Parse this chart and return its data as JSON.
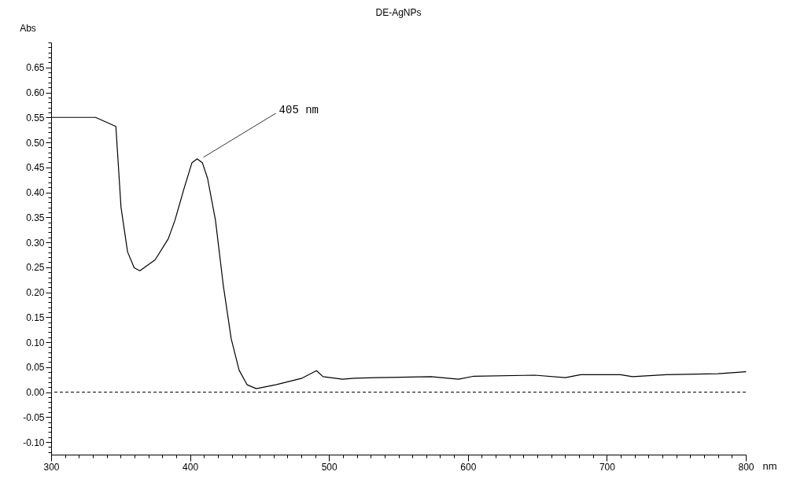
{
  "chart_data": {
    "type": "line",
    "title": "DE-AgNPs",
    "xlabel": "nm",
    "ylabel": "Abs",
    "xlim": [
      300,
      800
    ],
    "ylim": [
      -0.125,
      0.7
    ],
    "xticks": [
      300,
      {
        "value": 310,
        "label": null
      },
      {
        "value": 320,
        "label": null
      },
      {
        "value": 330,
        "label": null
      },
      {
        "value": 340,
        "label": null
      },
      {
        "value": 350,
        "label": null
      },
      {
        "value": 360,
        "label": null
      },
      {
        "value": 370,
        "label": null
      },
      {
        "value": 380,
        "label": null
      },
      {
        "value": 390,
        "label": null
      },
      400,
      {
        "value": 410,
        "label": null
      },
      {
        "value": 420,
        "label": null
      },
      {
        "value": 430,
        "label": null
      },
      {
        "value": 440,
        "label": null
      },
      {
        "value": 450,
        "label": null
      },
      {
        "value": 460,
        "label": null
      },
      {
        "value": 470,
        "label": null
      },
      {
        "value": 480,
        "label": null
      },
      {
        "value": 490,
        "label": null
      },
      500,
      {
        "value": 510,
        "label": null
      },
      {
        "value": 520,
        "label": null
      },
      {
        "value": 530,
        "label": null
      },
      {
        "value": 540,
        "label": null
      },
      {
        "value": 550,
        "label": null
      },
      {
        "value": 560,
        "label": null
      },
      {
        "value": 570,
        "label": null
      },
      {
        "value": 580,
        "label": null
      },
      {
        "value": 590,
        "label": null
      },
      600,
      {
        "value": 610,
        "label": null
      },
      {
        "value": 620,
        "label": null
      },
      {
        "value": 630,
        "label": null
      },
      {
        "value": 640,
        "label": null
      },
      {
        "value": 650,
        "label": null
      },
      {
        "value": 660,
        "label": null
      },
      {
        "value": 670,
        "label": null
      },
      {
        "value": 680,
        "label": null
      },
      {
        "value": 690,
        "label": null
      },
      700,
      {
        "value": 710,
        "label": null
      },
      {
        "value": 720,
        "label": null
      },
      {
        "value": 730,
        "label": null
      },
      {
        "value": 740,
        "label": null
      },
      {
        "value": 750,
        "label": null
      },
      {
        "value": 760,
        "label": null
      },
      {
        "value": 770,
        "label": null
      },
      {
        "value": 780,
        "label": null
      },
      {
        "value": 790,
        "label": null
      },
      800
    ],
    "yticks": [
      {
        "value": -0.12,
        "label": null
      },
      {
        "value": -0.11,
        "label": null
      },
      {
        "value": -0.1,
        "label": "-0.10"
      },
      {
        "value": -0.09,
        "label": null
      },
      {
        "value": -0.08,
        "label": null
      },
      {
        "value": -0.07,
        "label": null
      },
      {
        "value": -0.06,
        "label": null
      },
      {
        "value": -0.05,
        "label": "-0.05"
      },
      {
        "value": -0.04,
        "label": null
      },
      {
        "value": -0.03,
        "label": null
      },
      {
        "value": -0.02,
        "label": null
      },
      {
        "value": -0.01,
        "label": null
      },
      {
        "value": 0,
        "label": "0.00"
      },
      {
        "value": 0.01,
        "label": null
      },
      {
        "value": 0.02,
        "label": null
      },
      {
        "value": 0.03,
        "label": null
      },
      {
        "value": 0.04,
        "label": null
      },
      {
        "value": 0.05,
        "label": "0.05"
      },
      {
        "value": 0.06,
        "label": null
      },
      {
        "value": 0.07,
        "label": null
      },
      {
        "value": 0.08,
        "label": null
      },
      {
        "value": 0.09,
        "label": null
      },
      {
        "value": 0.1,
        "label": "0.10"
      },
      {
        "value": 0.11,
        "label": null
      },
      {
        "value": 0.12,
        "label": null
      },
      {
        "value": 0.13,
        "label": null
      },
      {
        "value": 0.14,
        "label": null
      },
      {
        "value": 0.15,
        "label": "0.15"
      },
      {
        "value": 0.16,
        "label": null
      },
      {
        "value": 0.17,
        "label": null
      },
      {
        "value": 0.18,
        "label": null
      },
      {
        "value": 0.19,
        "label": null
      },
      {
        "value": 0.2,
        "label": "0.20"
      },
      {
        "value": 0.21,
        "label": null
      },
      {
        "value": 0.22,
        "label": null
      },
      {
        "value": 0.23,
        "label": null
      },
      {
        "value": 0.24,
        "label": null
      },
      {
        "value": 0.25,
        "label": "0.25"
      },
      {
        "value": 0.26,
        "label": null
      },
      {
        "value": 0.27,
        "label": null
      },
      {
        "value": 0.28,
        "label": null
      },
      {
        "value": 0.29,
        "label": null
      },
      {
        "value": 0.3,
        "label": "0.30"
      },
      {
        "value": 0.31,
        "label": null
      },
      {
        "value": 0.32,
        "label": null
      },
      {
        "value": 0.33,
        "label": null
      },
      {
        "value": 0.34,
        "label": null
      },
      {
        "value": 0.35,
        "label": "0.35"
      },
      {
        "value": 0.36,
        "label": null
      },
      {
        "value": 0.37,
        "label": null
      },
      {
        "value": 0.38,
        "label": null
      },
      {
        "value": 0.39,
        "label": null
      },
      {
        "value": 0.4,
        "label": "0.40"
      },
      {
        "value": 0.41,
        "label": null
      },
      {
        "value": 0.42,
        "label": null
      },
      {
        "value": 0.43,
        "label": null
      },
      {
        "value": 0.44,
        "label": null
      },
      {
        "value": 0.45,
        "label": "0.45"
      },
      {
        "value": 0.46,
        "label": null
      },
      {
        "value": 0.47,
        "label": null
      },
      {
        "value": 0.48,
        "label": null
      },
      {
        "value": 0.49,
        "label": null
      },
      {
        "value": 0.5,
        "label": "0.50"
      },
      {
        "value": 0.51,
        "label": null
      },
      {
        "value": 0.52,
        "label": null
      },
      {
        "value": 0.53,
        "label": null
      },
      {
        "value": 0.54,
        "label": null
      },
      {
        "value": 0.55,
        "label": "0.55"
      },
      {
        "value": 0.56,
        "label": null
      },
      {
        "value": 0.57,
        "label": null
      },
      {
        "value": 0.58,
        "label": null
      },
      {
        "value": 0.59,
        "label": null
      },
      {
        "value": 0.6,
        "label": "0.60"
      },
      {
        "value": 0.61,
        "label": null
      },
      {
        "value": 0.62,
        "label": null
      },
      {
        "value": 0.63,
        "label": null
      },
      {
        "value": 0.64,
        "label": null
      },
      {
        "value": 0.65,
        "label": "0.65"
      },
      {
        "value": 0.66,
        "label": null
      },
      {
        "value": 0.67,
        "label": null
      },
      {
        "value": 0.68,
        "label": null
      },
      {
        "value": 0.69,
        "label": null
      },
      {
        "value": 0.7,
        "label": null
      }
    ],
    "grid": false,
    "marker": "none",
    "line_style": "solid",
    "series": [
      {
        "color": "#000000",
        "x": [
          300,
          332,
          346.6,
          350.3,
          355,
          359.8,
          363.9,
          374.9,
          384.3,
          389.1,
          395.6,
          401.3,
          405.1,
          408.9,
          412.6,
          418.3,
          424,
          429.6,
          435.3,
          441,
          447.6,
          461.8,
          480.6,
          491,
          495.7,
          509.8,
          518.4,
          534,
          573.5,
          593.3,
          604.3,
          648.2,
          670.1,
          681.1,
          709.7,
          718.5,
          742.6,
          780,
          800
        ],
        "values": [
          0.55,
          0.55,
          0.532,
          0.37,
          0.281,
          0.249,
          0.243,
          0.265,
          0.307,
          0.344,
          0.407,
          0.459,
          0.467,
          0.459,
          0.428,
          0.344,
          0.212,
          0.107,
          0.044,
          0.015,
          0.007,
          0.015,
          0.028,
          0.043,
          0.031,
          0.026,
          0.028,
          0.029,
          0.031,
          0.026,
          0.032,
          0.034,
          0.029,
          0.035,
          0.035,
          0.031,
          0.035,
          0.037,
          0.041
        ]
      }
    ],
    "ref_lines": [
      {
        "axis": "y",
        "value": 0,
        "line_style": "dashed",
        "color": "#000000"
      }
    ],
    "annotations": [
      {
        "text": "405 nm",
        "x": 405.1,
        "y": 0.467
      }
    ]
  }
}
